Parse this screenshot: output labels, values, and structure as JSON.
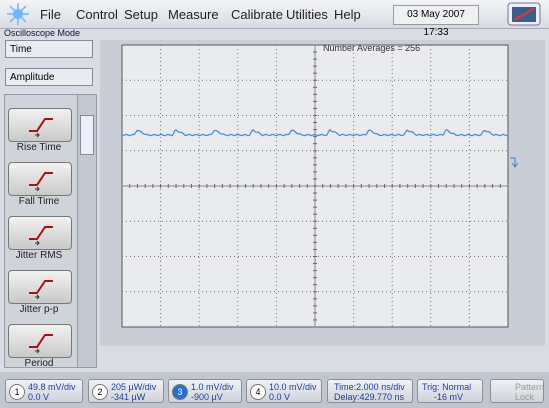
{
  "menu": [
    "File",
    "Control",
    "Setup",
    "Measure",
    "Calibrate",
    "Utilities",
    "Help"
  ],
  "datetime": "03 May 2007 17:33",
  "mode": "Oscilloscope Mode",
  "dropdowns": [
    "Time",
    "Amplitude"
  ],
  "measurements": [
    "Rise Time",
    "Fall Time",
    "Jitter RMS",
    "Jitter p-p",
    "Period"
  ],
  "display": {
    "annotation": "Number Averages = 256"
  },
  "channels": [
    {
      "number": "1",
      "scale": "49.8 mV/div",
      "offset": "0.0 V"
    },
    {
      "number": "2",
      "scale": "205 µW/div",
      "offset": "-341 µW"
    },
    {
      "number": "3",
      "scale": "1.0 mV/div",
      "offset": "-900 µV"
    },
    {
      "number": "4",
      "scale": "10.0 mV/div",
      "offset": "0.0 V"
    }
  ],
  "timebase": {
    "scale": "Time:2.000 ns/div",
    "delay": "Delay:429.770 ns"
  },
  "trigger": {
    "mode": "Trig: Normal",
    "level": "-16 mV"
  },
  "pattern_lock": [
    "Pattern",
    "Lock"
  ]
}
